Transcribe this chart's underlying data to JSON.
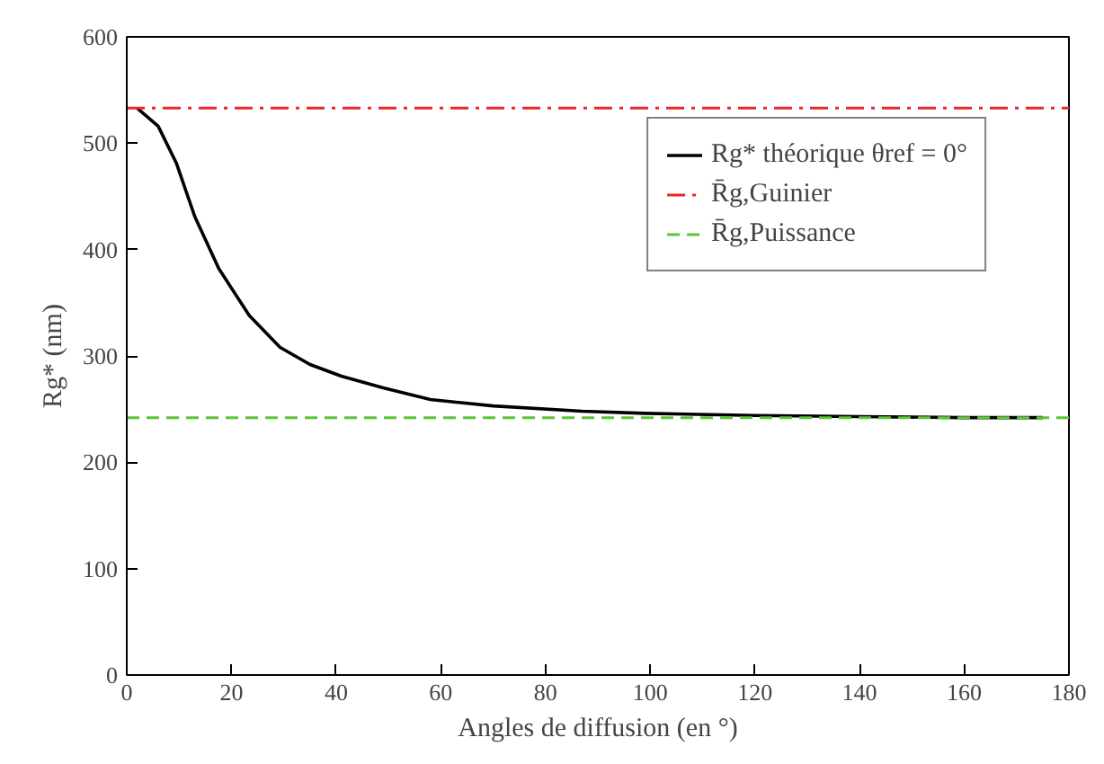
{
  "chart_data": {
    "type": "line",
    "xlabel": "Angles de diffusion (en °)",
    "ylabel": "Rg* (nm)",
    "xlim": [
      0,
      180
    ],
    "xticks": [
      0,
      20,
      40,
      60,
      80,
      100,
      120,
      140,
      160,
      180
    ],
    "ylim": [
      0,
      600
    ],
    "yticks": [
      0,
      100,
      200,
      300,
      400,
      500,
      600
    ],
    "grid": false,
    "legend": "top right",
    "line_style": "solid",
    "marker": "none",
    "series": [
      {
        "name": "Rg* théorique θref = 0°",
        "color": "#000000",
        "x": [
          2,
          6,
          9.5,
          13,
          17.6,
          23.4,
          29.3,
          35,
          41,
          49,
          58,
          70,
          87,
          99,
          120,
          140,
          160,
          175
        ],
        "values": [
          533,
          516,
          481,
          431,
          382,
          338,
          308,
          292,
          281,
          270,
          259,
          253,
          248,
          246,
          244,
          243,
          242,
          242
        ]
      }
    ],
    "ref_lines": [
      {
        "axis": "y",
        "value": 533,
        "label": "R̄g,Guinier",
        "color": "#e8262b",
        "line_style": "dashdot"
      },
      {
        "axis": "y",
        "value": 242,
        "label": "R̄g,Puissance",
        "color": "#5cc33a",
        "line_style": "dashed"
      }
    ]
  }
}
